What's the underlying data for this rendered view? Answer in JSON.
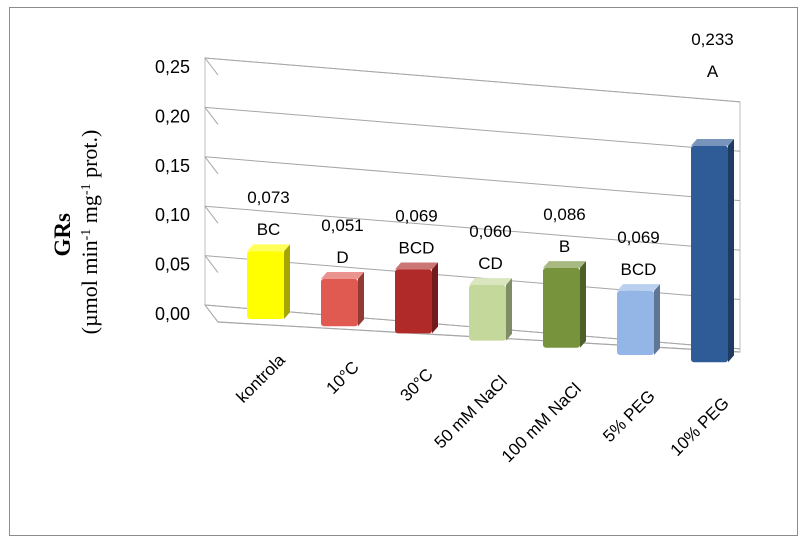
{
  "chart_data": {
    "type": "bar",
    "categories": [
      "kontrola",
      "10°C",
      "30°C",
      "50 mM NaCl",
      "100 mM NaCl",
      "5% PEG",
      "10% PEG"
    ],
    "values": [
      0.073,
      0.051,
      0.069,
      0.06,
      0.086,
      0.069,
      0.233
    ],
    "value_labels": [
      "0,073",
      "0,051",
      "0,069",
      "0,060",
      "0,086",
      "0,069",
      "0,233"
    ],
    "letters": [
      "BC",
      "D",
      "BCD",
      "CD",
      "B",
      "BCD",
      "A"
    ],
    "colors": [
      "#ffff00",
      "#e05a52",
      "#b12a2a",
      "#c4d89b",
      "#77943c",
      "#93b6e6",
      "#2f5b97"
    ],
    "ytick_labels": [
      "0,00",
      "0,05",
      "0,10",
      "0,15",
      "0,20",
      "0,25"
    ],
    "yticks": [
      0,
      0.05,
      0.1,
      0.15,
      0.2,
      0.25
    ],
    "ylim": [
      0,
      0.25
    ],
    "ylabel_main": "GRs",
    "ylabel_unit": "(µmol min-1 mg-1 prot.)",
    "grid": true,
    "style": "3d-column"
  }
}
